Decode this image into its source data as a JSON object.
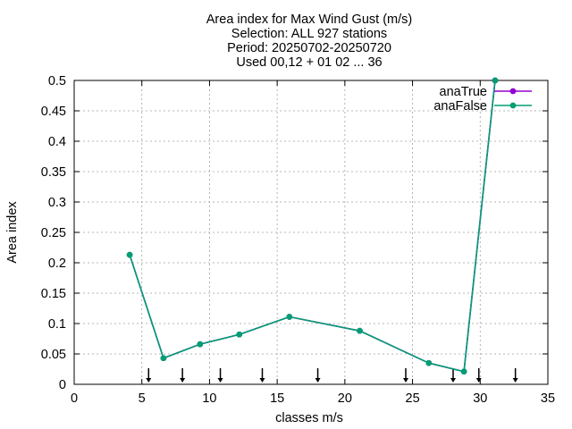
{
  "chart_data": {
    "type": "line",
    "title_lines": [
      "Area index  for Max Wind Gust (m/s)",
      "Selection: ALL    927 stations",
      "Period: 20250702-20250720",
      "Used 00,12 + 01 02 ... 36"
    ],
    "xlabel": "classes m/s",
    "ylabel": "Area index",
    "xlim": [
      0,
      35
    ],
    "ylim": [
      0,
      0.5
    ],
    "xticks": [
      0,
      5,
      10,
      15,
      20,
      25,
      30,
      35
    ],
    "yticks": [
      0,
      0.05,
      0.1,
      0.15,
      0.2,
      0.25,
      0.3,
      0.35,
      0.4,
      0.45,
      0.5
    ],
    "ytick_labels": [
      "0",
      "0.05",
      "0.1",
      "0.15",
      "0.2",
      "0.25",
      "0.3",
      "0.35",
      "0.4",
      "0.45",
      "0.5"
    ],
    "grid": true,
    "legend_position": "top-right",
    "series": [
      {
        "name": "anaTrue",
        "color": "#9400d3",
        "x": [
          4.1,
          6.6,
          9.3,
          12.2,
          15.9,
          21.1,
          26.2,
          28.8,
          31.1
        ],
        "y": [
          0.213,
          0.043,
          0.066,
          0.082,
          0.111,
          0.088,
          0.035,
          0.021,
          0.5
        ]
      },
      {
        "name": "anaFalse",
        "color": "#009e73",
        "x": [
          4.1,
          6.6,
          9.3,
          12.2,
          15.9,
          21.1,
          26.2,
          28.8,
          31.1
        ],
        "y": [
          0.213,
          0.043,
          0.066,
          0.082,
          0.111,
          0.088,
          0.035,
          0.021,
          0.5
        ]
      }
    ],
    "class_boundary_arrows_x": [
      5.5,
      8.0,
      10.8,
      13.9,
      18.0,
      24.5,
      28.0,
      29.9,
      32.6
    ]
  }
}
